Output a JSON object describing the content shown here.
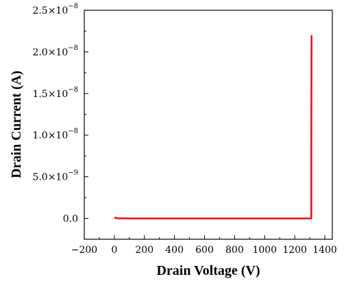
{
  "chart_data": {
    "type": "line",
    "title": "",
    "xlabel": "Drain Voltage (V)",
    "ylabel": "Drain Current (A)",
    "xlim": [
      -200,
      1450
    ],
    "ylim": [
      -2.5e-09,
      2.5e-08
    ],
    "x_ticks": [
      -200,
      0,
      200,
      400,
      600,
      800,
      1000,
      1200,
      1400
    ],
    "x_tick_labels": [
      "−200",
      "0",
      "200",
      "400",
      "600",
      "800",
      "1000",
      "1200",
      "1400"
    ],
    "y_ticks": [
      0,
      5e-09,
      1e-08,
      1.5e-08,
      2e-08,
      2.5e-08
    ],
    "y_tick_labels": [
      {
        "mantissa": "0.0",
        "exp": ""
      },
      {
        "mantissa": "5.0×10",
        "exp": "−9"
      },
      {
        "mantissa": "1.0×10",
        "exp": "−8"
      },
      {
        "mantissa": "1.5×10",
        "exp": "−8"
      },
      {
        "mantissa": "2.0×10",
        "exp": "−8"
      },
      {
        "mantissa": "2.5×10",
        "exp": "−8"
      }
    ],
    "grid": false,
    "series": [
      {
        "color": "#e8121e",
        "x": [
          0,
          20,
          100,
          300,
          600,
          900,
          1200,
          1300,
          1310,
          1310,
          1312
        ],
        "y": [
          1e-10,
          2e-11,
          0,
          0,
          0,
          0,
          0,
          0,
          0,
          1e-08,
          2.2e-08
        ]
      }
    ]
  }
}
